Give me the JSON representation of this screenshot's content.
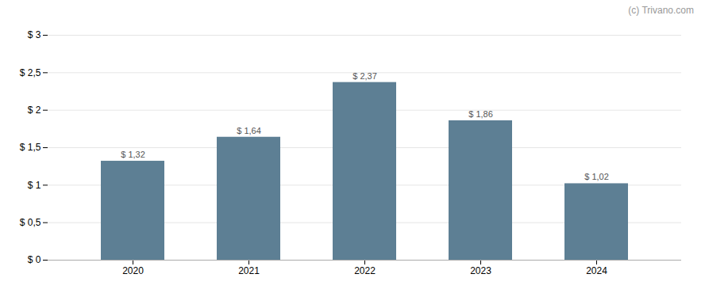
{
  "chart_data": {
    "type": "bar",
    "categories": [
      "2020",
      "2021",
      "2022",
      "2023",
      "2024"
    ],
    "values": [
      1.32,
      1.64,
      2.37,
      1.86,
      1.02
    ],
    "value_labels": [
      "$ 1,32",
      "$ 1,64",
      "$ 2,37",
      "$ 1,86",
      "$ 1,02"
    ],
    "data_labels": true,
    "color": "#5d7f94",
    "ylim": [
      0,
      3.0
    ],
    "yticks": [
      {
        "value": 0,
        "label": "$ 0"
      },
      {
        "value": 0.5,
        "label": "$ 0,5"
      },
      {
        "value": 1.0,
        "label": "$ 1"
      },
      {
        "value": 1.5,
        "label": "$ 1,5"
      },
      {
        "value": 2.0,
        "label": "$ 2"
      },
      {
        "value": 2.5,
        "label": "$ 2,5"
      },
      {
        "value": 3.0,
        "label": "$ 3"
      }
    ],
    "grid": true,
    "annotations": [
      "(c) Trivano.com"
    ]
  }
}
